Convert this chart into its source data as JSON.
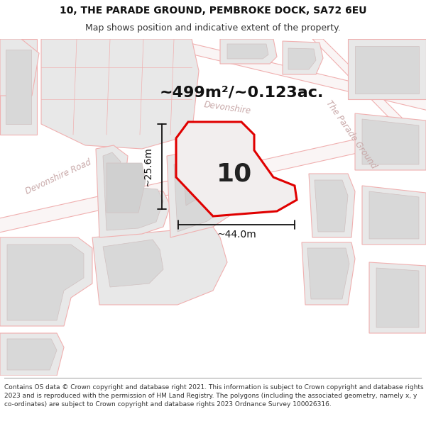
{
  "title_line1": "10, THE PARADE GROUND, PEMBROKE DOCK, SA72 6EU",
  "title_line2": "Map shows position and indicative extent of the property.",
  "area_text": "~499m²/~0.123ac.",
  "label_number": "10",
  "dim_width": "~44.0m",
  "dim_height": "~25.6m",
  "road_label_devonshire_road": "Devonshire Road",
  "road_label_devonshire": "Devonshire",
  "road_label_parade": "The Parade Ground",
  "footer_text": "Contains OS data © Crown copyright and database right 2021. This information is subject to Crown copyright and database rights 2023 and is reproduced with the permission of HM Land Registry. The polygons (including the associated geometry, namely x, y co-ordinates) are subject to Crown copyright and database rights 2023 Ordnance Survey 100026316.",
  "bg_color": "#ffffff",
  "map_bg": "#ffffff",
  "road_outline": "#f0b0b0",
  "bld_fill": "#e8e8e8",
  "bld_outline": "#d0c0c0",
  "red_color": "#e00000",
  "black": "#111111",
  "label_color": "#c8a8a8",
  "title_fontsize": 10,
  "subtitle_fontsize": 9,
  "area_fontsize": 16,
  "number_fontsize": 26,
  "dim_fontsize": 10,
  "road_fontsize": 8.5,
  "footer_fontsize": 6.5
}
